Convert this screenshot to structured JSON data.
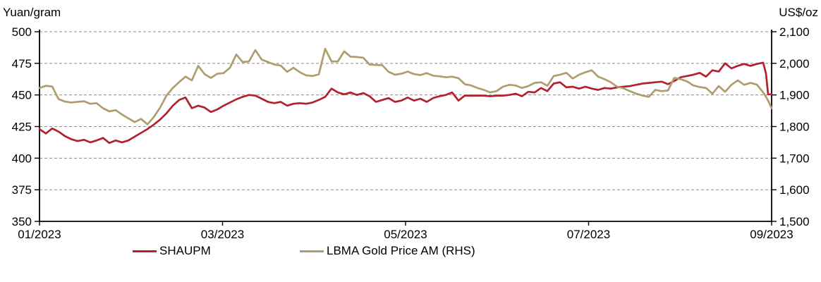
{
  "chart_data": {
    "type": "line",
    "title": "",
    "xlabel": "",
    "ylabel_left": "Yuan/gram",
    "ylabel_right": "US$/oz",
    "grid": "horizontal-dashed",
    "legend_position": "bottom",
    "x_tick_labels": [
      "01/2023",
      "03/2023",
      "05/2023",
      "07/2023",
      "09/2023"
    ],
    "y_left": {
      "range": [
        350,
        500
      ],
      "ticks": [
        500,
        475,
        450,
        425,
        400,
        375,
        350
      ],
      "labels": [
        "500",
        "475",
        "450",
        "425",
        "400",
        "375",
        "350"
      ]
    },
    "y_right": {
      "range": [
        1500,
        2100
      ],
      "ticks": [
        2100,
        2000,
        1900,
        1800,
        1700,
        1600,
        1500
      ],
      "labels": [
        "2,100",
        "2,000",
        "1,900",
        "1,800",
        "1,700",
        "1,600",
        "1,500"
      ]
    },
    "x": [
      0,
      0.0087,
      0.0173,
      0.026,
      0.0347,
      0.0434,
      0.052,
      0.0607,
      0.0694,
      0.078,
      0.0867,
      0.0954,
      0.104,
      0.1127,
      0.1214,
      0.1301,
      0.1387,
      0.1474,
      0.1561,
      0.1647,
      0.1734,
      0.1821,
      0.1908,
      0.1994,
      0.2081,
      0.2168,
      0.2254,
      0.2341,
      0.2428,
      0.2514,
      0.2601,
      0.2688,
      0.2775,
      0.2861,
      0.2948,
      0.3035,
      0.3121,
      0.3208,
      0.3295,
      0.3382,
      0.3468,
      0.3555,
      0.3642,
      0.3728,
      0.3815,
      0.3902,
      0.3988,
      0.4075,
      0.4162,
      0.4249,
      0.4335,
      0.4422,
      0.4509,
      0.4595,
      0.4682,
      0.4769,
      0.4855,
      0.4942,
      0.5029,
      0.5116,
      0.5202,
      0.5289,
      0.5376,
      0.5462,
      0.5549,
      0.5636,
      0.5723,
      0.5809,
      0.5896,
      0.5983,
      0.6069,
      0.6156,
      0.6243,
      0.6329,
      0.6416,
      0.6503,
      0.659,
      0.6676,
      0.6763,
      0.685,
      0.6936,
      0.7023,
      0.711,
      0.7197,
      0.7283,
      0.737,
      0.7457,
      0.7543,
      0.763,
      0.7717,
      0.7803,
      0.789,
      0.7977,
      0.8064,
      0.815,
      0.8237,
      0.8324,
      0.841,
      0.8497,
      0.8584,
      0.867,
      0.8757,
      0.8844,
      0.8931,
      0.9017,
      0.9104,
      0.9191,
      0.9277,
      0.9364,
      0.9451,
      0.9538,
      0.9624,
      0.9711,
      0.9798,
      0.9884,
      0.9923,
      0.9952,
      1.0
    ],
    "series": [
      {
        "name": "SHAUPM",
        "axis": "left",
        "unit": "Yuan/gram",
        "color": "#B3212C",
        "values": [
          423,
          419.5,
          423.5,
          421,
          417.5,
          415,
          413.5,
          414.5,
          412.5,
          414,
          416,
          412,
          414,
          412.5,
          414,
          417,
          420,
          423,
          426.5,
          430.5,
          435.5,
          441.5,
          446,
          448,
          439.5,
          441.5,
          440,
          436.5,
          438.5,
          441.5,
          444,
          446.5,
          448.5,
          450,
          449.5,
          447,
          444.5,
          443.5,
          444.5,
          441.5,
          443,
          443.5,
          443,
          444,
          446,
          448.5,
          455,
          452,
          450.5,
          452,
          450,
          451.5,
          449,
          444.5,
          446,
          447.5,
          444.5,
          445.5,
          448,
          445.5,
          447,
          444.5,
          447.5,
          449,
          450,
          452,
          445.5,
          449.5,
          449.5,
          449.5,
          449.5,
          449,
          449.5,
          449.5,
          450,
          451,
          449,
          452.5,
          452,
          455.5,
          453,
          459,
          460,
          456,
          456.5,
          455,
          456.5,
          455,
          454,
          455.5,
          455,
          456,
          456.5,
          457,
          458,
          459,
          459.5,
          460,
          460.5,
          458.5,
          461,
          464,
          465,
          466,
          467.5,
          464.5,
          469.5,
          468.5,
          475,
          471,
          473,
          474.5,
          473,
          474.5,
          475.5,
          467,
          450.5,
          450.5
        ]
      },
      {
        "name": "LBMA Gold Price AM (RHS)",
        "axis": "right",
        "unit": "US$/oz",
        "color": "#AF9D6F",
        "values": [
          1922,
          1929,
          1927,
          1887,
          1879,
          1876,
          1878,
          1880,
          1872,
          1874,
          1858,
          1848,
          1852,
          1838,
          1826,
          1814,
          1824,
          1807,
          1830,
          1860,
          1898,
          1922,
          1941,
          1958,
          1946,
          1992,
          1966,
          1954,
          1967,
          1969,
          1986,
          2028,
          2004,
          2006,
          2042,
          2012,
          2004,
          1996,
          1993,
          1973,
          1986,
          1972,
          1962,
          1960,
          1965,
          2046,
          2006,
          2006,
          2038,
          2021,
          2020,
          2018,
          1996,
          1995,
          1994,
          1973,
          1964,
          1967,
          1974,
          1966,
          1963,
          1969,
          1961,
          1959,
          1956,
          1958,
          1953,
          1934,
          1930,
          1922,
          1916,
          1908,
          1912,
          1926,
          1932,
          1930,
          1922,
          1928,
          1938,
          1940,
          1929,
          1960,
          1964,
          1970,
          1952,
          1964,
          1972,
          1978,
          1958,
          1950,
          1940,
          1926,
          1921,
          1912,
          1904,
          1898,
          1894,
          1916,
          1912,
          1914,
          1954,
          1950,
          1943,
          1930,
          1925,
          1922,
          1904,
          1928,
          1910,
          1932,
          1946,
          1932,
          1938,
          1933,
          1908,
          1894,
          1882,
          1858
        ]
      }
    ]
  },
  "legend": {
    "shaupm_label": "SHAUPM",
    "lbma_label": "LBMA Gold Price AM (RHS)"
  },
  "axes_titles": {
    "left": "Yuan/gram",
    "right": "US$/oz"
  }
}
